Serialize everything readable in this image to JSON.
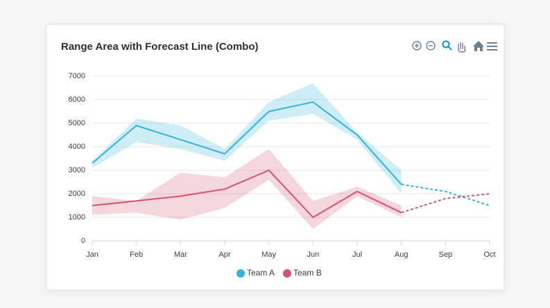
{
  "chart_data": {
    "type": "rangeArea",
    "title": "Range Area with Forecast Line (Combo)",
    "categories": [
      "Jan",
      "Feb",
      "Mar",
      "Apr",
      "May",
      "Jun",
      "Jul",
      "Aug",
      "Sep",
      "Oct"
    ],
    "ylim": [
      0,
      7000
    ],
    "yticks": [
      0,
      1000,
      2000,
      3000,
      4000,
      5000,
      6000,
      7000
    ],
    "grid": true,
    "legend": "bottom",
    "series": [
      {
        "name": "Team A",
        "color": "#33b2df",
        "values": [
          3300,
          4900,
          4300,
          3700,
          5500,
          5900,
          4500,
          2400,
          null,
          null
        ],
        "low": [
          3100,
          4200,
          3900,
          3400,
          5100,
          5400,
          4300,
          2000,
          null,
          null
        ],
        "high": [
          3400,
          5200,
          4900,
          3900,
          5900,
          6700,
          4600,
          3000,
          null,
          null
        ],
        "forecast": [
          null,
          null,
          null,
          null,
          null,
          null,
          null,
          2400,
          2100,
          1500
        ]
      },
      {
        "name": "Team B",
        "color": "#d4526e",
        "values": [
          1500,
          1700,
          1900,
          2200,
          3000,
          1000,
          2100,
          1200,
          null,
          null
        ],
        "low": [
          1100,
          1200,
          900,
          1400,
          2600,
          500,
          1900,
          1000,
          null,
          null
        ],
        "high": [
          1900,
          1700,
          2900,
          2700,
          3900,
          1700,
          2300,
          1500,
          null,
          null
        ],
        "forecast": [
          null,
          null,
          null,
          null,
          null,
          null,
          null,
          1200,
          1800,
          2000
        ]
      }
    ]
  }
}
